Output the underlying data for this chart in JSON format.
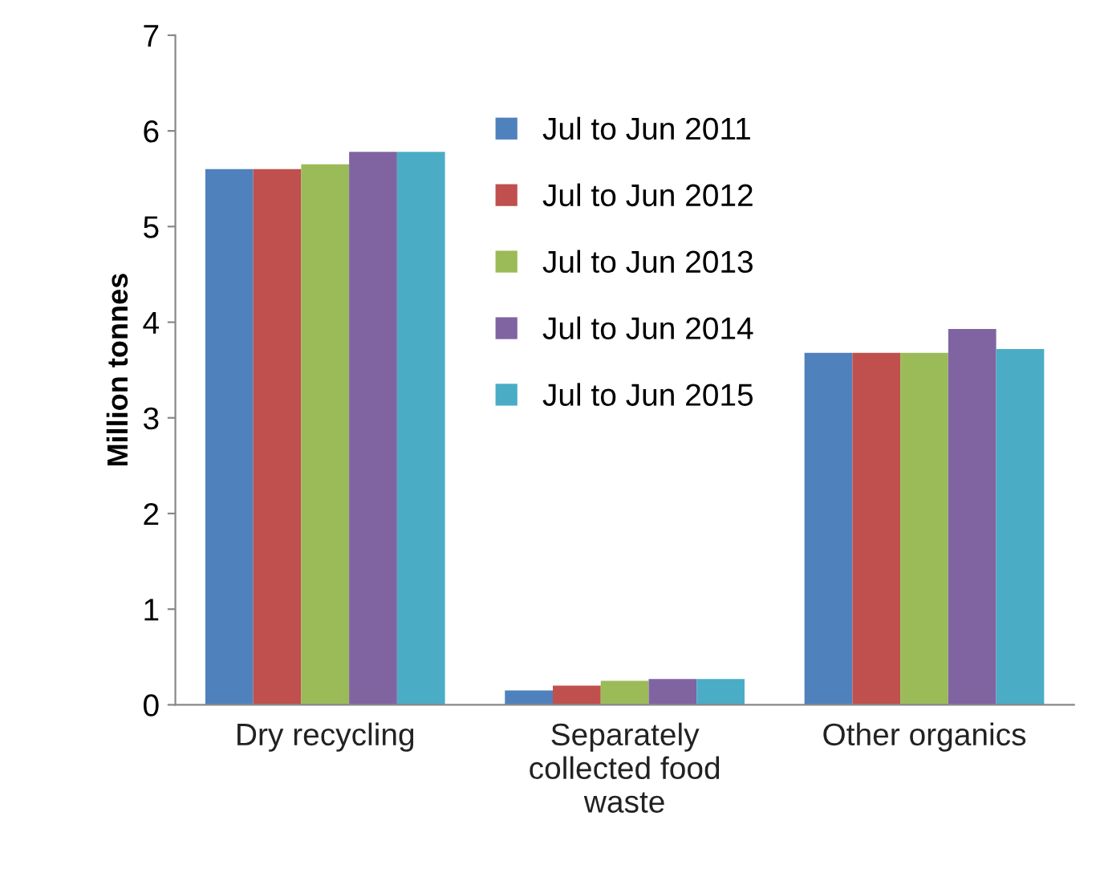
{
  "chart_data": {
    "type": "bar",
    "ylabel": "Million tonnes",
    "categories": [
      "Dry recycling",
      "Separately\ncollected food\nwaste",
      "Other organics"
    ],
    "series": [
      {
        "name": "Jul to Jun 2011",
        "color": "#4f81bd",
        "values": [
          5.6,
          0.15,
          3.68
        ]
      },
      {
        "name": "Jul to Jun 2012",
        "color": "#c0504d",
        "values": [
          5.6,
          0.2,
          3.68
        ]
      },
      {
        "name": "Jul to Jun 2013",
        "color": "#9bbb59",
        "values": [
          5.65,
          0.25,
          3.68
        ]
      },
      {
        "name": "Jul to Jun 2014",
        "color": "#8064a2",
        "values": [
          5.78,
          0.27,
          3.93
        ]
      },
      {
        "name": "Jul to Jun 2015",
        "color": "#4bacc6",
        "values": [
          5.78,
          0.27,
          3.72
        ]
      }
    ],
    "ylim": [
      0,
      7
    ],
    "yticks": [
      0,
      1,
      2,
      3,
      4,
      5,
      6,
      7
    ],
    "grid": false,
    "legend": "top"
  }
}
